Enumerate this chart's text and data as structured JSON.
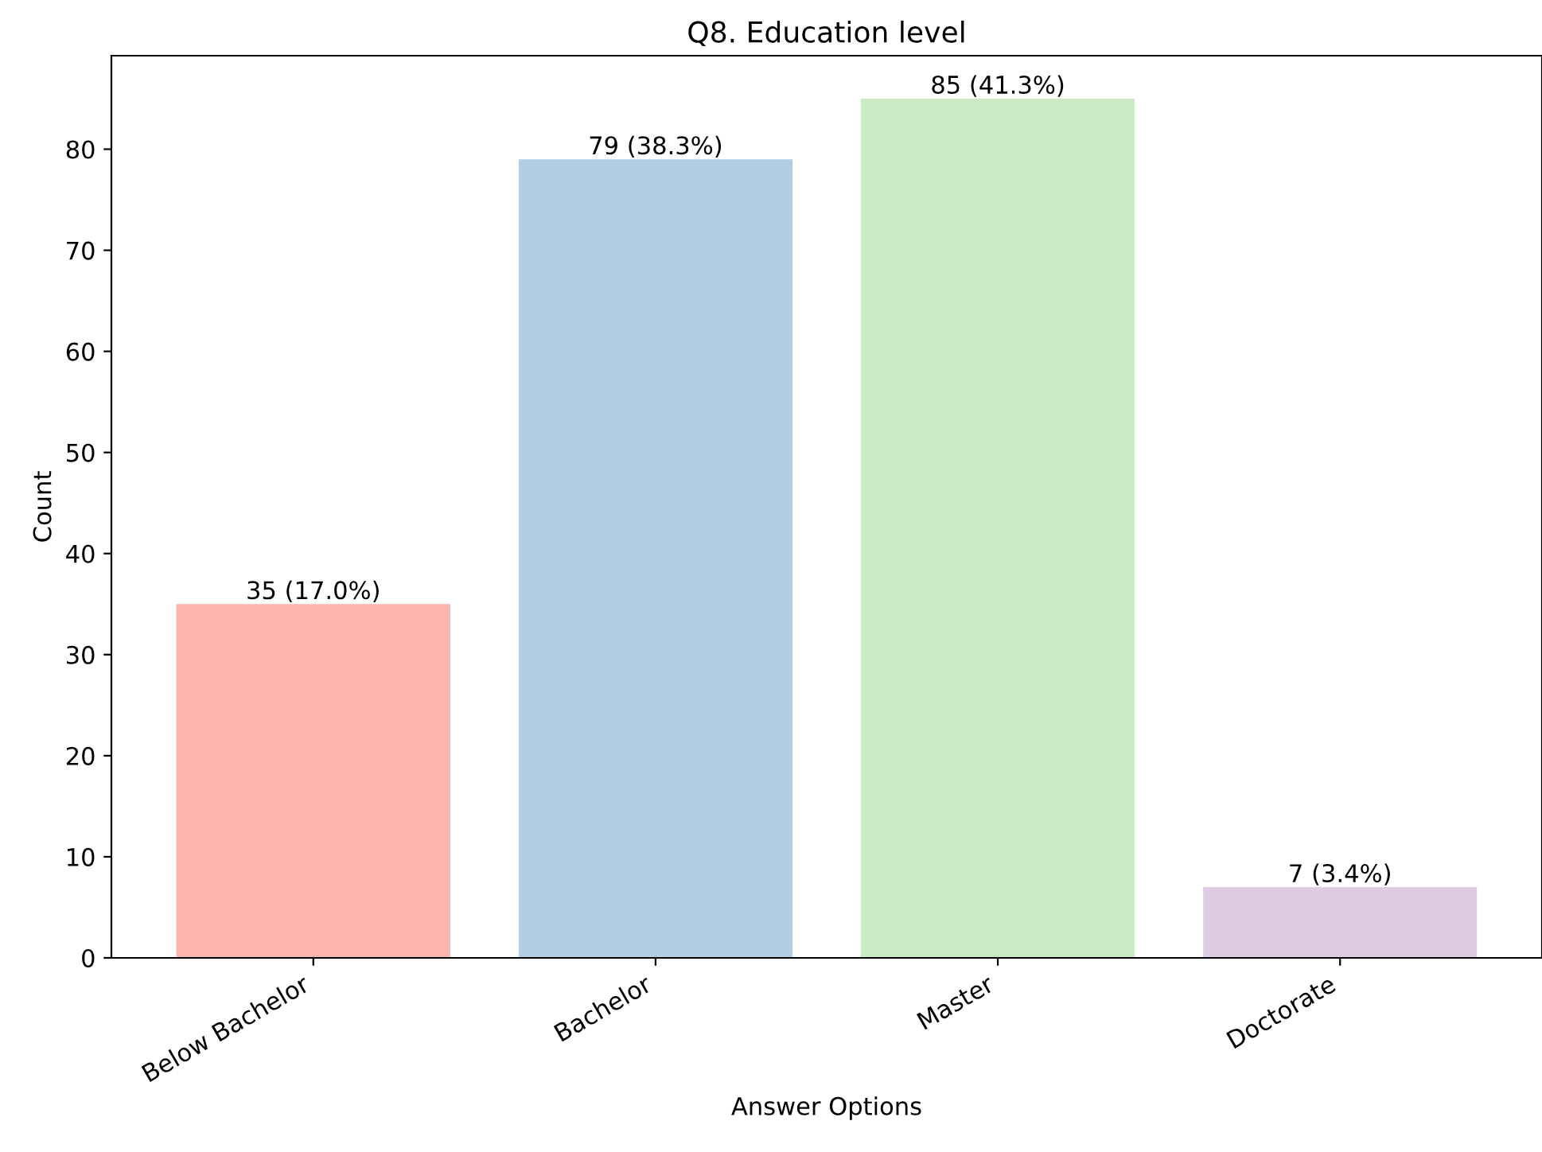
{
  "chart_data": {
    "type": "bar",
    "title": "Q8. Education level",
    "xlabel": "Answer Options",
    "ylabel": "Count",
    "categories": [
      "Below Bachelor",
      "Bachelor",
      "Master",
      "Doctorate"
    ],
    "values": [
      35,
      79,
      85,
      7
    ],
    "colors": [
      "#fbb4ae",
      "#b3cde3",
      "#ccebc5",
      "#decbe4"
    ],
    "value_labels": [
      "35 (17.0%)",
      "79 (38.3%)",
      "85 (41.3%)",
      "7 (3.4%)"
    ],
    "ylim": [
      0,
      89.25
    ],
    "yticks": [
      0,
      10,
      20,
      30,
      40,
      50,
      60,
      70,
      80
    ],
    "grid": false
  }
}
